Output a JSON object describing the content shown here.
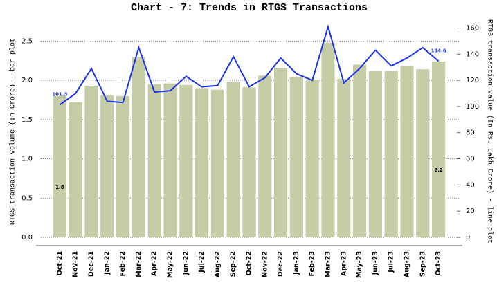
{
  "chart_data": {
    "type": "bar-line",
    "title": "Chart - 7: Trends in RTGS Transactions",
    "y_label": "RTGS transaction volume (In Crore) - bar plot",
    "y2_label": "RTGS transaction value (In Rs. Lakh Crore) - line plot",
    "categories": [
      "Oct-21",
      "Nov-21",
      "Dec-21",
      "Jan-22",
      "Feb-22",
      "Mar-22",
      "Apr-22",
      "May-22",
      "Jun-22",
      "Jul-22",
      "Aug-22",
      "Sep-22",
      "Oct-22",
      "Nov-22",
      "Dec-22",
      "Jan-23",
      "Feb-23",
      "Mar-23",
      "Apr-23",
      "May-23",
      "Jun-23",
      "Jul-23",
      "Aug-23",
      "Sep-23",
      "Oct-23"
    ],
    "series": [
      {
        "type": "bar",
        "color": "#c4cda6",
        "values": [
          1.8,
          1.72,
          1.93,
          1.81,
          1.8,
          2.3,
          1.95,
          1.96,
          1.94,
          1.9,
          1.88,
          1.98,
          1.91,
          2.06,
          2.16,
          2.04,
          2.0,
          2.48,
          2.02,
          2.2,
          2.12,
          2.12,
          2.18,
          2.14,
          2.24
        ],
        "value_labels": [
          "1.8",
          null,
          null,
          null,
          null,
          null,
          null,
          null,
          null,
          null,
          null,
          null,
          null,
          null,
          null,
          null,
          null,
          null,
          null,
          null,
          null,
          null,
          null,
          null,
          "2.2"
        ]
      },
      {
        "type": "line",
        "axis": "y2",
        "color": "#1b32e6",
        "values": [
          101.3,
          110,
          129,
          104,
          103,
          145,
          111,
          112,
          123,
          115,
          116,
          138,
          115,
          122,
          137,
          125,
          120,
          161,
          118,
          129,
          143,
          131,
          137,
          145,
          134.6
        ],
        "value_labels": [
          "101.3",
          null,
          null,
          null,
          null,
          null,
          null,
          null,
          null,
          null,
          null,
          null,
          null,
          null,
          null,
          null,
          null,
          null,
          null,
          null,
          null,
          null,
          null,
          null,
          "134.6"
        ]
      }
    ],
    "ylim": [
      0,
      2.75
    ],
    "yticks": [
      {
        "value": 0,
        "label": "0.0"
      },
      0.5,
      {
        "value": 1,
        "label": "1.0"
      },
      1.5,
      {
        "value": 2,
        "label": "2.0"
      },
      2.5
    ],
    "y2lim": [
      0,
      165
    ],
    "y2ticks": [
      0,
      20,
      40,
      60,
      80,
      100,
      120,
      140,
      160
    ],
    "grid": true
  }
}
